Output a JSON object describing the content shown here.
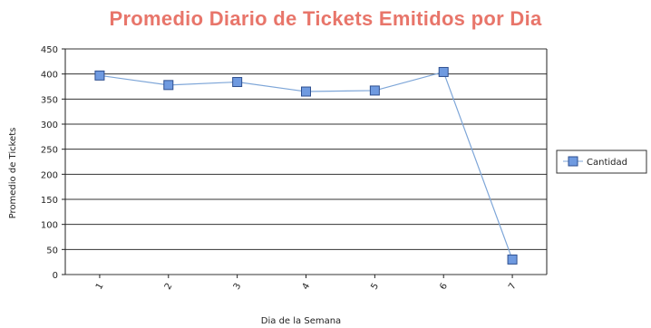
{
  "chart_data": {
    "type": "line",
    "title": "Promedio Diario de Tickets Emitidos por Dia",
    "xlabel": "Dia de la Semana",
    "ylabel": "Promedio de Tickets",
    "categories": [
      "1",
      "2",
      "3",
      "4",
      "5",
      "6",
      "7"
    ],
    "series": [
      {
        "name": "Cantidad",
        "values": [
          397,
          378,
          384,
          365,
          367,
          404,
          30
        ]
      }
    ],
    "ylim": [
      0,
      450
    ],
    "yticks": [
      "0",
      "50",
      "100",
      "150",
      "200",
      "250",
      "300",
      "350",
      "400",
      "450"
    ],
    "grid": true,
    "legend_position": "right"
  },
  "colors": {
    "title": "#e8756a",
    "line": "#7ea6d8",
    "marker_fill": "#6f9ae0",
    "marker_stroke": "#2e4f8f",
    "grid": "#333333",
    "axis": "#222222"
  }
}
